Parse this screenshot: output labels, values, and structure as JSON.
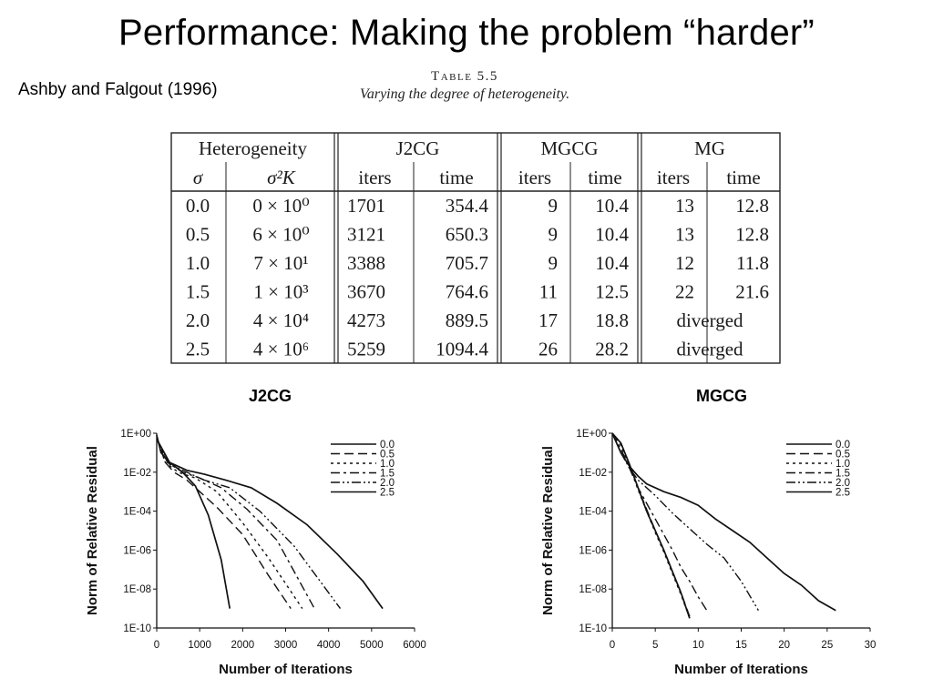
{
  "slide": {
    "title": "Performance: Making the problem “harder”",
    "citation": "Ashby and Falgout (1996)"
  },
  "table": {
    "caption_number": "Table 5.5",
    "caption_text": "Varying the degree of heterogeneity.",
    "group_headers": [
      "Heterogeneity",
      "J2CG",
      "MGCG",
      "MG"
    ],
    "sub_headers": [
      "σ",
      "σ²K",
      "iters",
      "time",
      "iters",
      "time",
      "iters",
      "time"
    ],
    "rows": [
      {
        "sigma": "0.0",
        "sigmaK": "0 × 10⁰",
        "j2cg_iters": "1701",
        "j2cg_time": "354.4",
        "mgcg_iters": "9",
        "mgcg_time": "10.4",
        "mg_iters": "13",
        "mg_time": "12.8",
        "mg_note": ""
      },
      {
        "sigma": "0.5",
        "sigmaK": "6 × 10⁰",
        "j2cg_iters": "3121",
        "j2cg_time": "650.3",
        "mgcg_iters": "9",
        "mgcg_time": "10.4",
        "mg_iters": "13",
        "mg_time": "12.8",
        "mg_note": ""
      },
      {
        "sigma": "1.0",
        "sigmaK": "7 × 10¹",
        "j2cg_iters": "3388",
        "j2cg_time": "705.7",
        "mgcg_iters": "9",
        "mgcg_time": "10.4",
        "mg_iters": "12",
        "mg_time": "11.8",
        "mg_note": ""
      },
      {
        "sigma": "1.5",
        "sigmaK": "1 × 10³",
        "j2cg_iters": "3670",
        "j2cg_time": "764.6",
        "mgcg_iters": "11",
        "mgcg_time": "12.5",
        "mg_iters": "22",
        "mg_time": "21.6",
        "mg_note": ""
      },
      {
        "sigma": "2.0",
        "sigmaK": "4 × 10⁴",
        "j2cg_iters": "4273",
        "j2cg_time": "889.5",
        "mgcg_iters": "17",
        "mgcg_time": "18.8",
        "mg_iters": "",
        "mg_time": "",
        "mg_note": "diverged"
      },
      {
        "sigma": "2.5",
        "sigmaK": "4 × 10⁶",
        "j2cg_iters": "5259",
        "j2cg_time": "1094.4",
        "mgcg_iters": "26",
        "mgcg_time": "28.2",
        "mg_iters": "",
        "mg_time": "",
        "mg_note": "diverged"
      }
    ]
  },
  "chart_data": [
    {
      "type": "line",
      "title": "J2CG",
      "xlabel": "Number of Iterations",
      "ylabel": "Norm of Relative Residual",
      "xlim": [
        0,
        6000
      ],
      "xticks": [
        "0",
        "1000",
        "2000",
        "3000",
        "4000",
        "5000",
        "6000"
      ],
      "ylog": true,
      "ylim_exp": [
        -10,
        0
      ],
      "yticks": [
        "1E+00",
        "1E-02",
        "1E-04",
        "1E-06",
        "1E-08",
        "1E-10"
      ],
      "legend_position": "top-right",
      "series": [
        {
          "name": "0.0",
          "dash": "solid",
          "points": [
            [
              0,
              -0.1
            ],
            [
              100,
              -1.0
            ],
            [
              300,
              -1.5
            ],
            [
              600,
              -2.0
            ],
            [
              900,
              -2.7
            ],
            [
              1200,
              -4.2
            ],
            [
              1500,
              -6.5
            ],
            [
              1701,
              -9.0
            ]
          ]
        },
        {
          "name": "0.5",
          "dash": "10,5",
          "points": [
            [
              0,
              -0.2
            ],
            [
              200,
              -1.5
            ],
            [
              400,
              -2.0
            ],
            [
              700,
              -2.4
            ],
            [
              1000,
              -3.0
            ],
            [
              1400,
              -3.8
            ],
            [
              2000,
              -5.2
            ],
            [
              2600,
              -7.3
            ],
            [
              3121,
              -9.0
            ]
          ]
        },
        {
          "name": "1.0",
          "dash": "3,4",
          "points": [
            [
              0,
              -0.2
            ],
            [
              200,
              -1.5
            ],
            [
              500,
              -2.0
            ],
            [
              900,
              -2.3
            ],
            [
              1400,
              -3.0
            ],
            [
              2000,
              -4.6
            ],
            [
              2600,
              -6.4
            ],
            [
              3388,
              -9.0
            ]
          ]
        },
        {
          "name": "1.5",
          "dash": "10,4,3,4",
          "points": [
            [
              0,
              -0.3
            ],
            [
              250,
              -1.5
            ],
            [
              600,
              -2.0
            ],
            [
              1000,
              -2.3
            ],
            [
              1500,
              -2.8
            ],
            [
              2100,
              -3.9
            ],
            [
              2800,
              -5.5
            ],
            [
              3670,
              -9.0
            ]
          ]
        },
        {
          "name": "2.0",
          "dash": "10,3,2,3,2,3",
          "points": [
            [
              0,
              -0.3
            ],
            [
              300,
              -1.6
            ],
            [
              700,
              -2.0
            ],
            [
              1100,
              -2.4
            ],
            [
              1700,
              -2.8
            ],
            [
              2400,
              -4.0
            ],
            [
              3200,
              -5.8
            ],
            [
              4273,
              -9.0
            ]
          ]
        },
        {
          "name": "2.5",
          "dash": "solid",
          "points": [
            [
              0,
              -0.3
            ],
            [
              300,
              -1.5
            ],
            [
              700,
              -1.9
            ],
            [
              1100,
              -2.1
            ],
            [
              1600,
              -2.4
            ],
            [
              2200,
              -2.8
            ],
            [
              2800,
              -3.6
            ],
            [
              3500,
              -4.7
            ],
            [
              4200,
              -6.2
            ],
            [
              4800,
              -7.6
            ],
            [
              5259,
              -9.0
            ]
          ]
        }
      ]
    },
    {
      "type": "line",
      "title": "MGCG",
      "xlabel": "Number of Iterations",
      "ylabel": "Norm of Relative Residual",
      "xlim": [
        0,
        30
      ],
      "xticks": [
        "0",
        "5",
        "10",
        "15",
        "20",
        "25",
        "30"
      ],
      "ylog": true,
      "ylim_exp": [
        -10,
        0
      ],
      "yticks": [
        "1E+00",
        "1E-02",
        "1E-04",
        "1E-06",
        "1E-08",
        "1E-10"
      ],
      "legend_position": "top-right",
      "series": [
        {
          "name": "0.0",
          "dash": "solid",
          "points": [
            [
              0,
              0
            ],
            [
              1,
              -0.5
            ],
            [
              2,
              -1.6
            ],
            [
              3,
              -2.8
            ],
            [
              4,
              -4.0
            ],
            [
              5,
              -5.0
            ],
            [
              6,
              -6.0
            ],
            [
              7,
              -7.1
            ],
            [
              8,
              -8.2
            ],
            [
              9,
              -9.5
            ]
          ]
        },
        {
          "name": "0.5",
          "dash": "10,5",
          "points": [
            [
              0,
              0
            ],
            [
              1,
              -0.5
            ],
            [
              2,
              -1.6
            ],
            [
              3,
              -2.8
            ],
            [
              4,
              -3.9
            ],
            [
              5,
              -5.0
            ],
            [
              6,
              -6.0
            ],
            [
              7,
              -7.1
            ],
            [
              8,
              -8.2
            ],
            [
              9,
              -9.4
            ]
          ]
        },
        {
          "name": "1.0",
          "dash": "3,4",
          "points": [
            [
              0,
              0
            ],
            [
              1,
              -0.6
            ],
            [
              2,
              -1.7
            ],
            [
              3,
              -2.9
            ],
            [
              4,
              -4.0
            ],
            [
              5,
              -5.1
            ],
            [
              6,
              -6.1
            ],
            [
              7,
              -7.2
            ],
            [
              8,
              -8.3
            ],
            [
              9,
              -9.5
            ]
          ]
        },
        {
          "name": "1.5",
          "dash": "10,4,3,4",
          "points": [
            [
              0,
              0
            ],
            [
              1,
              -0.8
            ],
            [
              2,
              -1.8
            ],
            [
              3,
              -2.8
            ],
            [
              4,
              -3.6
            ],
            [
              5,
              -4.4
            ],
            [
              6,
              -5.2
            ],
            [
              7,
              -6.0
            ],
            [
              8,
              -6.9
            ],
            [
              9,
              -7.6
            ],
            [
              10,
              -8.4
            ],
            [
              11,
              -9.1
            ]
          ]
        },
        {
          "name": "2.0",
          "dash": "10,3,2,3,2,3",
          "points": [
            [
              0,
              0
            ],
            [
              1,
              -1.0
            ],
            [
              2,
              -1.8
            ],
            [
              3,
              -2.4
            ],
            [
              5,
              -3.2
            ],
            [
              7,
              -4.1
            ],
            [
              9,
              -4.9
            ],
            [
              11,
              -5.7
            ],
            [
              13,
              -6.4
            ],
            [
              15,
              -7.6
            ],
            [
              17,
              -9.1
            ]
          ]
        },
        {
          "name": "2.5",
          "dash": "solid",
          "points": [
            [
              0,
              0
            ],
            [
              1,
              -1.0
            ],
            [
              2,
              -1.7
            ],
            [
              3,
              -2.2
            ],
            [
              4,
              -2.6
            ],
            [
              6,
              -3.0
            ],
            [
              8,
              -3.3
            ],
            [
              10,
              -3.7
            ],
            [
              12,
              -4.4
            ],
            [
              14,
              -5.0
            ],
            [
              16,
              -5.6
            ],
            [
              18,
              -6.4
            ],
            [
              20,
              -7.2
            ],
            [
              22,
              -7.8
            ],
            [
              24,
              -8.6
            ],
            [
              26,
              -9.1
            ]
          ]
        }
      ]
    }
  ]
}
